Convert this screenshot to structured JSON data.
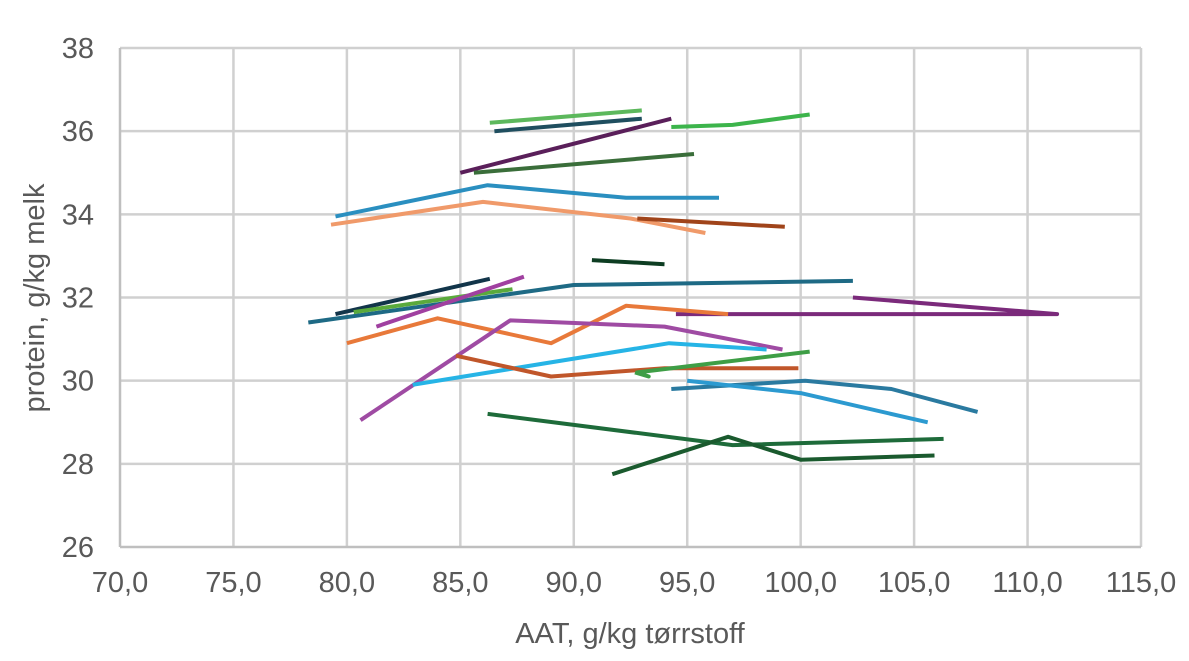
{
  "chart_data": {
    "type": "line",
    "xlabel": "AAT, g/kg tørrstoff",
    "ylabel": "protein, g/kg melk",
    "xlim": [
      70,
      115
    ],
    "ylim": [
      26,
      38
    ],
    "x_ticks": [
      70,
      75,
      80,
      85,
      90,
      95,
      100,
      105,
      110,
      115
    ],
    "x_tick_labels": [
      "70,0",
      "75,0",
      "80,0",
      "85,0",
      "90,0",
      "95,0",
      "100,0",
      "105,0",
      "110,0",
      "115,0"
    ],
    "y_ticks": [
      26,
      28,
      30,
      32,
      34,
      36,
      38
    ],
    "y_tick_labels": [
      "26",
      "28",
      "30",
      "32",
      "34",
      "36",
      "38"
    ],
    "grid": {
      "vertical": true,
      "horizontal": true
    },
    "series": [
      {
        "color": "#5cb85c",
        "points": [
          [
            86.3,
            36.2
          ],
          [
            93.0,
            36.5
          ]
        ]
      },
      {
        "color": "#1f4e5f",
        "points": [
          [
            86.5,
            36.0
          ],
          [
            93.0,
            36.3
          ]
        ]
      },
      {
        "color": "#3cb44b",
        "points": [
          [
            94.3,
            36.1
          ],
          [
            97.0,
            36.15
          ],
          [
            100.4,
            36.4
          ]
        ]
      },
      {
        "color": "#5a1f5a",
        "points": [
          [
            85.0,
            35.0
          ],
          [
            94.3,
            36.3
          ]
        ]
      },
      {
        "color": "#3a6e3a",
        "points": [
          [
            85.6,
            35.0
          ],
          [
            95.3,
            35.45
          ]
        ]
      },
      {
        "color": "#2a8fc0",
        "points": [
          [
            79.5,
            33.95
          ],
          [
            86.2,
            34.7
          ],
          [
            92.3,
            34.4
          ],
          [
            96.4,
            34.4
          ]
        ]
      },
      {
        "color": "#f09a6a",
        "points": [
          [
            79.3,
            33.75
          ],
          [
            86.0,
            34.3
          ],
          [
            92.5,
            33.9
          ],
          [
            95.8,
            33.55
          ]
        ]
      },
      {
        "color": "#a0441a",
        "points": [
          [
            92.8,
            33.9
          ],
          [
            99.3,
            33.7
          ]
        ]
      },
      {
        "color": "#0d3d22",
        "points": [
          [
            90.8,
            32.9
          ],
          [
            94.0,
            32.8
          ]
        ]
      },
      {
        "color": "#12354a",
        "points": [
          [
            79.5,
            31.6
          ],
          [
            86.3,
            32.45
          ]
        ]
      },
      {
        "color": "#1e6a85",
        "points": [
          [
            78.3,
            31.4
          ],
          [
            90.0,
            32.3
          ],
          [
            102.3,
            32.4
          ]
        ]
      },
      {
        "color": "#5aaa3c",
        "points": [
          [
            80.3,
            31.65
          ],
          [
            87.3,
            32.2
          ]
        ]
      },
      {
        "color": "#a040a0",
        "points": [
          [
            81.3,
            31.3
          ],
          [
            87.8,
            32.5
          ]
        ]
      },
      {
        "color": "#7b2a7b",
        "points": [
          [
            102.3,
            32.0
          ],
          [
            111.3,
            31.6
          ],
          [
            94.5,
            31.6
          ]
        ]
      },
      {
        "color": "#e8793a",
        "points": [
          [
            80.0,
            30.9
          ],
          [
            84.0,
            31.5
          ],
          [
            89.0,
            30.9
          ],
          [
            92.3,
            31.8
          ],
          [
            96.8,
            31.6
          ]
        ]
      },
      {
        "color": "#9f4ba3",
        "points": [
          [
            80.6,
            29.05
          ],
          [
            87.2,
            31.45
          ],
          [
            94.0,
            31.3
          ],
          [
            99.2,
            30.75
          ]
        ]
      },
      {
        "color": "#26b4e6",
        "points": [
          [
            82.9,
            29.9
          ],
          [
            94.2,
            30.9
          ],
          [
            98.5,
            30.75
          ]
        ]
      },
      {
        "color": "#c0562a",
        "points": [
          [
            84.8,
            30.6
          ],
          [
            89.0,
            30.1
          ],
          [
            94.0,
            30.3
          ],
          [
            99.9,
            30.3
          ]
        ]
      },
      {
        "color": "#3e9e46",
        "points": [
          [
            92.7,
            30.2
          ],
          [
            93.3,
            30.1
          ],
          [
            92.8,
            30.2
          ],
          [
            100.4,
            30.7
          ]
        ]
      },
      {
        "color": "#2a7aa0",
        "points": [
          [
            94.3,
            29.8
          ],
          [
            100.2,
            30.0
          ],
          [
            104.0,
            29.8
          ],
          [
            107.8,
            29.25
          ]
        ]
      },
      {
        "color": "#2c9ad0",
        "points": [
          [
            95.0,
            30.0
          ],
          [
            100.0,
            29.7
          ],
          [
            105.6,
            29.0
          ]
        ]
      },
      {
        "color": "#1e6b3a",
        "points": [
          [
            86.2,
            29.2
          ],
          [
            97.0,
            28.45
          ],
          [
            106.3,
            28.6
          ]
        ]
      },
      {
        "color": "#1a5a2e",
        "points": [
          [
            91.7,
            27.75
          ],
          [
            96.8,
            28.65
          ],
          [
            100.0,
            28.1
          ],
          [
            105.9,
            28.2
          ]
        ]
      }
    ]
  }
}
